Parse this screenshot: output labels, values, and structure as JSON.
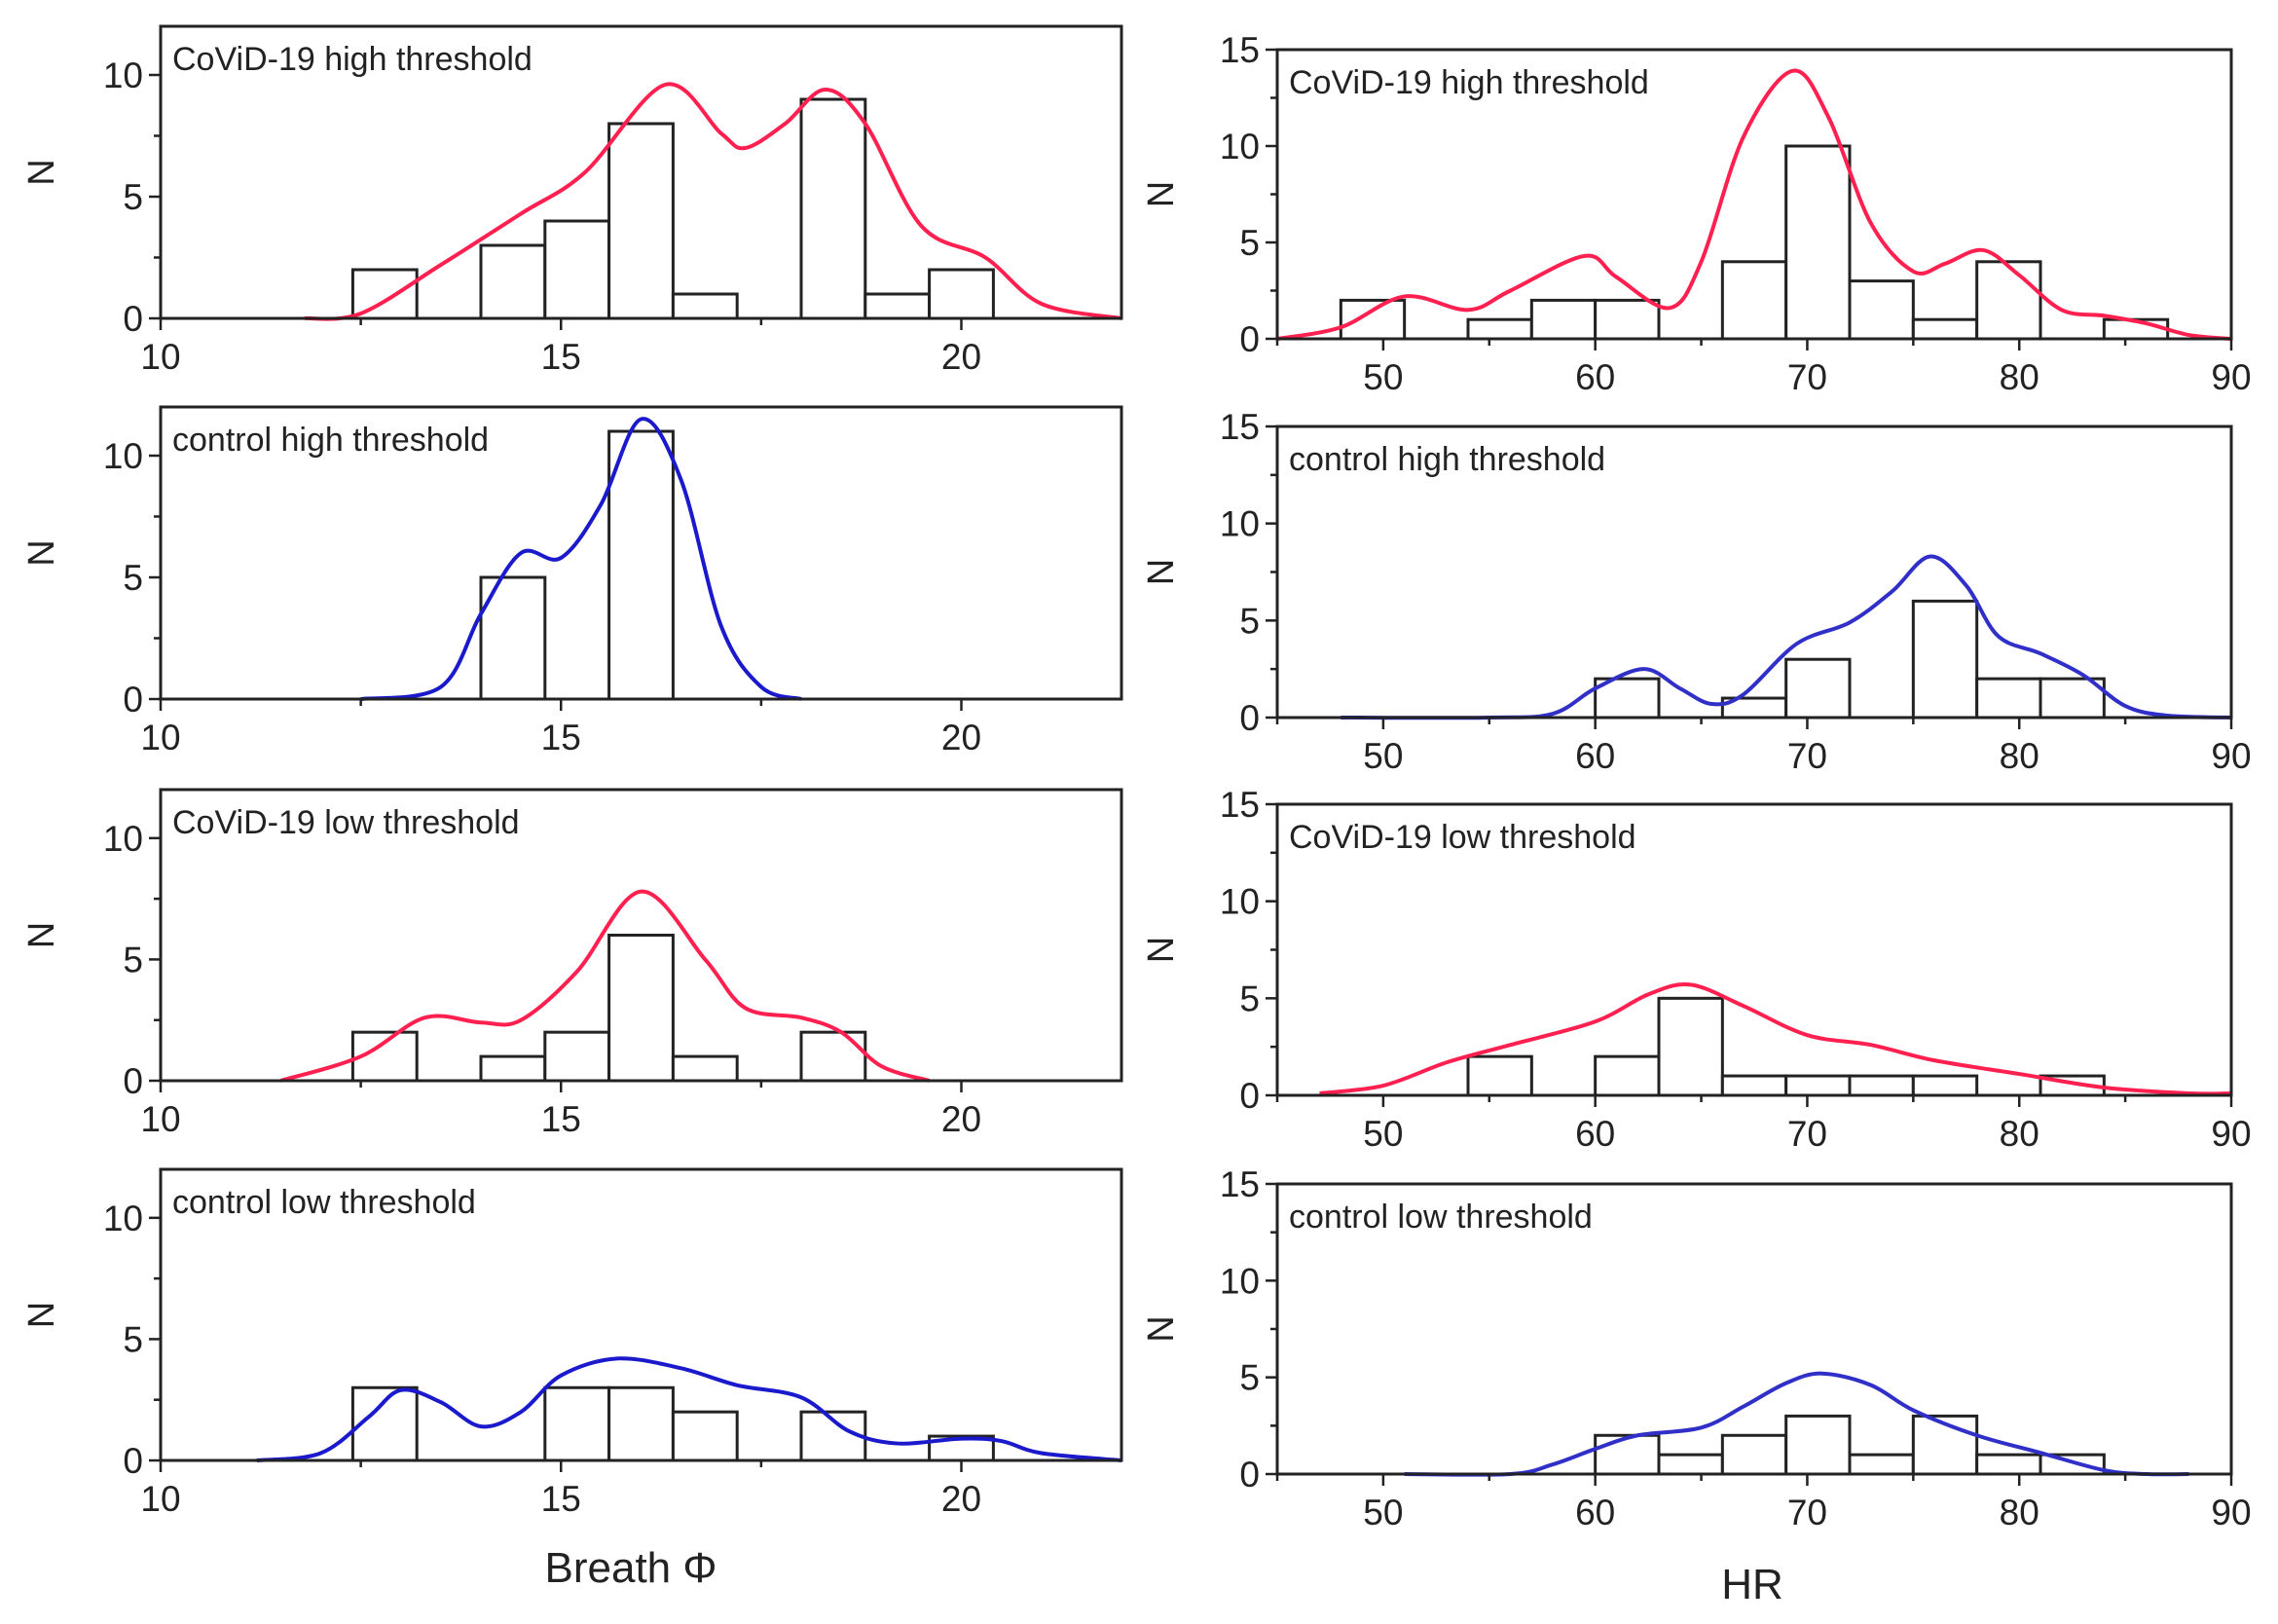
{
  "chart_data": [
    {
      "type": "bar",
      "title": "CoViD-19 high threshold",
      "xlabel": "",
      "ylabel": "N",
      "xlim": [
        10,
        22
      ],
      "ylim": [
        0,
        12
      ],
      "xticks": [
        10,
        15,
        20
      ],
      "yticks": [
        0,
        5,
        10
      ],
      "curve_color": "#ff2050",
      "bins": [
        [
          12.4,
          13.2,
          2
        ],
        [
          14.0,
          14.8,
          3
        ],
        [
          14.8,
          15.6,
          4
        ],
        [
          15.6,
          16.4,
          8
        ],
        [
          16.4,
          17.2,
          1
        ],
        [
          18.0,
          18.8,
          9
        ],
        [
          18.8,
          19.6,
          1
        ],
        [
          19.6,
          20.4,
          2
        ]
      ],
      "curve": [
        [
          11.8,
          0
        ],
        [
          12.5,
          0.2
        ],
        [
          13.5,
          2.2
        ],
        [
          14.5,
          4.3
        ],
        [
          15.3,
          6
        ],
        [
          16.3,
          9.6
        ],
        [
          17,
          7.6
        ],
        [
          17.3,
          7
        ],
        [
          17.8,
          8
        ],
        [
          18.3,
          9.4
        ],
        [
          18.8,
          8
        ],
        [
          19.5,
          3.8
        ],
        [
          20.3,
          2.5
        ],
        [
          21,
          0.6
        ],
        [
          22,
          0
        ]
      ]
    },
    {
      "type": "bar",
      "title": "control high threshold",
      "xlabel": "",
      "ylabel": "N",
      "xlim": [
        10,
        22
      ],
      "ylim": [
        0,
        12
      ],
      "xticks": [
        10,
        15,
        20
      ],
      "yticks": [
        0,
        5,
        10
      ],
      "curve_color": "#1a1acc",
      "bins": [
        [
          14.0,
          14.8,
          5
        ],
        [
          15.6,
          16.4,
          11
        ]
      ],
      "curve": [
        [
          12.5,
          0
        ],
        [
          13.5,
          0.5
        ],
        [
          14,
          3.5
        ],
        [
          14.5,
          6
        ],
        [
          15,
          5.8
        ],
        [
          15.5,
          8
        ],
        [
          16,
          11.5
        ],
        [
          16.5,
          9
        ],
        [
          17,
          3
        ],
        [
          17.5,
          0.5
        ],
        [
          18,
          0
        ]
      ]
    },
    {
      "type": "bar",
      "title": "CoViD-19 low threshold",
      "xlabel": "",
      "ylabel": "N",
      "xlim": [
        10,
        22
      ],
      "ylim": [
        0,
        12
      ],
      "xticks": [
        10,
        15,
        20
      ],
      "yticks": [
        0,
        5,
        10
      ],
      "curve_color": "#ff2050",
      "bins": [
        [
          12.4,
          13.2,
          2
        ],
        [
          14.0,
          14.8,
          1
        ],
        [
          14.8,
          15.6,
          2
        ],
        [
          15.6,
          16.4,
          6
        ],
        [
          16.4,
          17.2,
          1
        ],
        [
          18.0,
          18.8,
          2
        ]
      ],
      "curve": [
        [
          11.5,
          0
        ],
        [
          12.5,
          1
        ],
        [
          13.3,
          2.6
        ],
        [
          14,
          2.4
        ],
        [
          14.5,
          2.5
        ],
        [
          15.2,
          4.5
        ],
        [
          16,
          7.8
        ],
        [
          16.8,
          5
        ],
        [
          17.3,
          3
        ],
        [
          18,
          2.6
        ],
        [
          18.5,
          2
        ],
        [
          19,
          0.6
        ],
        [
          19.6,
          0
        ]
      ]
    },
    {
      "type": "bar",
      "title": "control low threshold",
      "xlabel": "Breath Φ",
      "ylabel": "N",
      "xlim": [
        10,
        22
      ],
      "ylim": [
        0,
        12
      ],
      "xticks": [
        10,
        15,
        20
      ],
      "yticks": [
        0,
        5,
        10
      ],
      "curve_color": "#1a1acc",
      "bins": [
        [
          12.4,
          13.2,
          3
        ],
        [
          14.8,
          15.6,
          3
        ],
        [
          15.6,
          16.4,
          3
        ],
        [
          16.4,
          17.2,
          2
        ],
        [
          18.0,
          18.8,
          2
        ],
        [
          19.6,
          20.4,
          1
        ]
      ],
      "curve": [
        [
          11.2,
          0
        ],
        [
          12,
          0.3
        ],
        [
          12.6,
          1.8
        ],
        [
          13,
          2.9
        ],
        [
          13.5,
          2.4
        ],
        [
          14,
          1.4
        ],
        [
          14.5,
          2
        ],
        [
          15,
          3.5
        ],
        [
          15.7,
          4.2
        ],
        [
          16.5,
          3.8
        ],
        [
          17.2,
          3.1
        ],
        [
          18,
          2.6
        ],
        [
          18.6,
          1.2
        ],
        [
          19.2,
          0.7
        ],
        [
          20,
          0.9
        ],
        [
          20.5,
          0.8
        ],
        [
          21,
          0.3
        ],
        [
          22,
          0
        ]
      ]
    },
    {
      "type": "bar",
      "title": "CoViD-19 high threshold",
      "xlabel": "",
      "ylabel": "N",
      "xlim": [
        45,
        90
      ],
      "ylim": [
        0,
        15
      ],
      "xticks": [
        50,
        60,
        70,
        80,
        90
      ],
      "yticks": [
        0,
        5,
        10,
        15
      ],
      "curve_color": "#ff2050",
      "bins": [
        [
          48,
          51,
          2
        ],
        [
          54,
          57,
          1
        ],
        [
          57,
          60,
          2
        ],
        [
          60,
          63,
          2
        ],
        [
          66,
          69,
          4
        ],
        [
          69,
          72,
          10
        ],
        [
          72,
          75,
          3
        ],
        [
          75,
          78,
          1
        ],
        [
          78,
          81,
          4
        ],
        [
          84,
          87,
          1
        ]
      ],
      "curve": [
        [
          45,
          0
        ],
        [
          48,
          0.6
        ],
        [
          51,
          2.2
        ],
        [
          54,
          1.5
        ],
        [
          56,
          2.5
        ],
        [
          59.5,
          4.3
        ],
        [
          61,
          3.2
        ],
        [
          63.5,
          1.6
        ],
        [
          65,
          4
        ],
        [
          67,
          10.5
        ],
        [
          69.3,
          13.9
        ],
        [
          71,
          11.5
        ],
        [
          73,
          6
        ],
        [
          75,
          3.5
        ],
        [
          76.5,
          3.9
        ],
        [
          78.3,
          4.6
        ],
        [
          80,
          3.3
        ],
        [
          82,
          1.5
        ],
        [
          84,
          1.2
        ],
        [
          86,
          0.8
        ],
        [
          88,
          0.2
        ],
        [
          90,
          0
        ]
      ]
    },
    {
      "type": "bar",
      "title": "control high threshold",
      "xlabel": "",
      "ylabel": "N",
      "xlim": [
        45,
        90
      ],
      "ylim": [
        0,
        15
      ],
      "xticks": [
        50,
        60,
        70,
        80,
        90
      ],
      "yticks": [
        0,
        5,
        10,
        15
      ],
      "curve_color": "#3030c8",
      "bins": [
        [
          60,
          63,
          2
        ],
        [
          66,
          69,
          1
        ],
        [
          69,
          72,
          3
        ],
        [
          75,
          78,
          6
        ],
        [
          78,
          81,
          2
        ],
        [
          81,
          84,
          2
        ]
      ],
      "curve": [
        [
          48,
          0
        ],
        [
          55,
          0
        ],
        [
          58,
          0.2
        ],
        [
          60,
          1.5
        ],
        [
          62.3,
          2.5
        ],
        [
          64,
          1.5
        ],
        [
          65.5,
          0.7
        ],
        [
          67,
          1.2
        ],
        [
          69.5,
          3.8
        ],
        [
          72,
          4.9
        ],
        [
          74,
          6.5
        ],
        [
          75.8,
          8.3
        ],
        [
          77.5,
          6.8
        ],
        [
          79,
          4.2
        ],
        [
          81,
          3.3
        ],
        [
          83,
          2.2
        ],
        [
          85,
          0.6
        ],
        [
          87,
          0.1
        ],
        [
          90,
          0
        ]
      ]
    },
    {
      "type": "bar",
      "title": "CoViD-19 low threshold",
      "xlabel": "",
      "ylabel": "N",
      "xlim": [
        45,
        90
      ],
      "ylim": [
        0,
        15
      ],
      "xticks": [
        50,
        60,
        70,
        80,
        90
      ],
      "yticks": [
        0,
        5,
        10,
        15
      ],
      "curve_color": "#ff2050",
      "bins": [
        [
          54,
          57,
          2
        ],
        [
          60,
          63,
          2
        ],
        [
          63,
          66,
          5
        ],
        [
          66,
          69,
          1
        ],
        [
          69,
          72,
          1
        ],
        [
          72,
          75,
          1
        ],
        [
          75,
          78,
          1
        ],
        [
          81,
          84,
          1
        ]
      ],
      "curve": [
        [
          47,
          0.1
        ],
        [
          50,
          0.5
        ],
        [
          53,
          1.7
        ],
        [
          56,
          2.6
        ],
        [
          60,
          3.8
        ],
        [
          62.5,
          5.2
        ],
        [
          64.5,
          5.7
        ],
        [
          67,
          4.6
        ],
        [
          70,
          3.1
        ],
        [
          73,
          2.6
        ],
        [
          76,
          1.8
        ],
        [
          80,
          1.1
        ],
        [
          84,
          0.4
        ],
        [
          88,
          0.1
        ],
        [
          90,
          0.1
        ]
      ]
    },
    {
      "type": "bar",
      "title": "control low threshold",
      "xlabel": "HR",
      "ylabel": "N",
      "xlim": [
        45,
        90
      ],
      "ylim": [
        0,
        15
      ],
      "xticks": [
        50,
        60,
        70,
        80,
        90
      ],
      "yticks": [
        0,
        5,
        10,
        15
      ],
      "curve_color": "#3030c8",
      "bins": [
        [
          60,
          63,
          2
        ],
        [
          63,
          66,
          1
        ],
        [
          66,
          69,
          2
        ],
        [
          69,
          72,
          3
        ],
        [
          72,
          75,
          1
        ],
        [
          75,
          78,
          3
        ],
        [
          78,
          81,
          1
        ],
        [
          81,
          84,
          1
        ]
      ],
      "curve": [
        [
          51,
          0
        ],
        [
          56,
          0
        ],
        [
          58,
          0.5
        ],
        [
          60,
          1.3
        ],
        [
          62,
          2
        ],
        [
          65,
          2.4
        ],
        [
          67,
          3.5
        ],
        [
          69,
          4.7
        ],
        [
          70.7,
          5.2
        ],
        [
          73,
          4.6
        ],
        [
          75,
          3.3
        ],
        [
          78,
          2
        ],
        [
          81,
          1.1
        ],
        [
          84,
          0.2
        ],
        [
          86,
          0
        ],
        [
          88,
          0
        ]
      ]
    }
  ]
}
